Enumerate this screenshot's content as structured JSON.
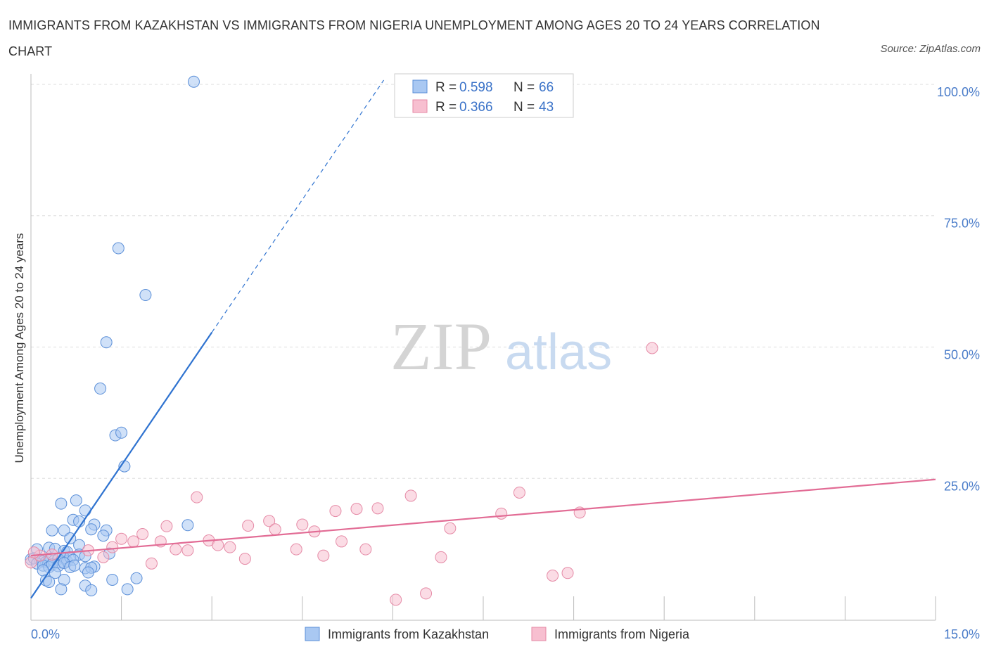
{
  "title": "IMMIGRANTS FROM KAZAKHSTAN VS IMMIGRANTS FROM NIGERIA UNEMPLOYMENT AMONG AGES 20 TO 24 YEARS CORRELATION CHART",
  "source": "Source: ZipAtlas.com",
  "watermark": {
    "zip": "ZIP",
    "atlas": "atlas"
  },
  "colors": {
    "kazakhstan_fill": "#a9c8f2",
    "kazakhstan_stroke": "#5b8fd8",
    "kazakhstan_line": "#2f73d0",
    "nigeria_fill": "#f7bfd0",
    "nigeria_stroke": "#e58aa6",
    "nigeria_line": "#e26c95",
    "grid": "#dddddd",
    "tick_label": "#4a7cc9"
  },
  "legend": {
    "rows": [
      {
        "r_label": "R = ",
        "r_value": "0.598",
        "n_label": "N = ",
        "n_value": "66"
      },
      {
        "r_label": "R = ",
        "r_value": "0.366",
        "n_label": "N = ",
        "n_value": "43"
      }
    ]
  },
  "chart_data": {
    "type": "scatter",
    "title": "IMMIGRANTS FROM KAZAKHSTAN VS IMMIGRANTS FROM NIGERIA UNEMPLOYMENT AMONG AGES 20 TO 24 YEARS CORRELATION CHART",
    "xlabel": "",
    "ylabel": "Unemployment Among Ages 20 to 24 years",
    "xlim": [
      0,
      15
    ],
    "ylim": [
      -2,
      102
    ],
    "x_tick_labels": [
      {
        "value": 0,
        "label": "0.0%"
      },
      {
        "value": 15,
        "label": "15.0%"
      }
    ],
    "y_tick_labels": [
      {
        "value": 25,
        "label": "25.0%"
      },
      {
        "value": 50,
        "label": "50.0%"
      },
      {
        "value": 75,
        "label": "75.0%"
      },
      {
        "value": 100,
        "label": "100.0%"
      }
    ],
    "legend_position": "top-center",
    "series": [
      {
        "name": "Immigrants from Kazakhstan",
        "r": 0.598,
        "n": 66,
        "trend": {
          "x0": 0,
          "y0": 2.2,
          "x1": 3.0,
          "y1": 52.8,
          "x_dash_end": 5.85,
          "y_dash_end": 100.8
        },
        "points": [
          [
            2.7,
            100.5
          ],
          [
            1.45,
            68.8
          ],
          [
            1.9,
            59.9
          ],
          [
            1.25,
            50.9
          ],
          [
            1.15,
            42.1
          ],
          [
            1.4,
            33.2
          ],
          [
            1.5,
            33.7
          ],
          [
            1.55,
            27.3
          ],
          [
            0.75,
            20.8
          ],
          [
            0.5,
            20.2
          ],
          [
            1.05,
            16.2
          ],
          [
            0.7,
            17.1
          ],
          [
            0.8,
            16.8
          ],
          [
            0.9,
            18.9
          ],
          [
            2.6,
            16.1
          ],
          [
            0.35,
            15.1
          ],
          [
            0.55,
            15.1
          ],
          [
            1.0,
            15.3
          ],
          [
            1.25,
            15.1
          ],
          [
            1.2,
            14.1
          ],
          [
            0.65,
            13.6
          ],
          [
            0.8,
            12.3
          ],
          [
            0.3,
            11.8
          ],
          [
            0.4,
            11.6
          ],
          [
            0.1,
            11.5
          ],
          [
            0.55,
            11.2
          ],
          [
            0.6,
            11.0
          ],
          [
            0.8,
            10.5
          ],
          [
            0.9,
            10.2
          ],
          [
            1.3,
            10.7
          ],
          [
            0.0,
            9.6
          ],
          [
            0.05,
            9.8
          ],
          [
            0.15,
            9.5
          ],
          [
            0.2,
            9.2
          ],
          [
            0.25,
            9.1
          ],
          [
            0.3,
            9.4
          ],
          [
            0.38,
            9.3
          ],
          [
            0.45,
            9.6
          ],
          [
            0.5,
            9.0
          ],
          [
            0.55,
            9.8
          ],
          [
            0.6,
            9.2
          ],
          [
            0.65,
            10.0
          ],
          [
            0.7,
            9.5
          ],
          [
            0.1,
            8.8
          ],
          [
            0.2,
            8.4
          ],
          [
            0.3,
            8.1
          ],
          [
            0.35,
            8.6
          ],
          [
            0.45,
            8.3
          ],
          [
            0.55,
            8.9
          ],
          [
            0.65,
            8.1
          ],
          [
            0.72,
            8.4
          ],
          [
            0.9,
            7.9
          ],
          [
            1.05,
            8.2
          ],
          [
            1.0,
            8.0
          ],
          [
            0.2,
            7.5
          ],
          [
            0.4,
            7.0
          ],
          [
            0.95,
            7.1
          ],
          [
            0.25,
            5.6
          ],
          [
            0.55,
            5.7
          ],
          [
            0.3,
            5.3
          ],
          [
            1.35,
            5.7
          ],
          [
            1.75,
            6.0
          ],
          [
            0.9,
            4.6
          ],
          [
            0.5,
            3.9
          ],
          [
            1.0,
            3.7
          ],
          [
            1.6,
            3.9
          ]
        ]
      },
      {
        "name": "Immigrants from Nigeria",
        "r": 0.366,
        "n": 43,
        "trend": {
          "x0": 0,
          "y0": 10.3,
          "x1": 15,
          "y1": 24.8
        },
        "points": [
          [
            10.3,
            49.8
          ],
          [
            2.75,
            21.4
          ],
          [
            6.3,
            21.7
          ],
          [
            8.1,
            22.3
          ],
          [
            5.4,
            19.2
          ],
          [
            5.75,
            19.3
          ],
          [
            5.05,
            18.8
          ],
          [
            7.8,
            18.3
          ],
          [
            9.1,
            18.5
          ],
          [
            3.95,
            16.9
          ],
          [
            4.5,
            16.2
          ],
          [
            2.25,
            15.9
          ],
          [
            3.6,
            16.0
          ],
          [
            6.95,
            15.5
          ],
          [
            4.05,
            15.3
          ],
          [
            4.7,
            14.9
          ],
          [
            1.85,
            14.4
          ],
          [
            1.5,
            13.5
          ],
          [
            1.7,
            13.0
          ],
          [
            2.15,
            13.0
          ],
          [
            2.95,
            13.2
          ],
          [
            5.15,
            13.0
          ],
          [
            3.1,
            12.3
          ],
          [
            3.3,
            11.9
          ],
          [
            4.4,
            11.5
          ],
          [
            2.4,
            11.5
          ],
          [
            2.6,
            11.3
          ],
          [
            5.55,
            11.5
          ],
          [
            1.35,
            11.9
          ],
          [
            0.95,
            11.3
          ],
          [
            4.85,
            10.3
          ],
          [
            1.2,
            10.0
          ],
          [
            0.15,
            10.3
          ],
          [
            3.55,
            9.7
          ],
          [
            6.8,
            10.0
          ],
          [
            0.0,
            9.0
          ],
          [
            0.05,
            10.9
          ],
          [
            0.35,
            10.5
          ],
          [
            8.9,
            7.0
          ],
          [
            8.65,
            6.5
          ],
          [
            6.55,
            3.1
          ],
          [
            6.05,
            1.9
          ],
          [
            2.0,
            8.8
          ]
        ]
      }
    ]
  },
  "bottom_legend": [
    "Immigrants from Kazakhstan",
    "Immigrants from Nigeria"
  ]
}
